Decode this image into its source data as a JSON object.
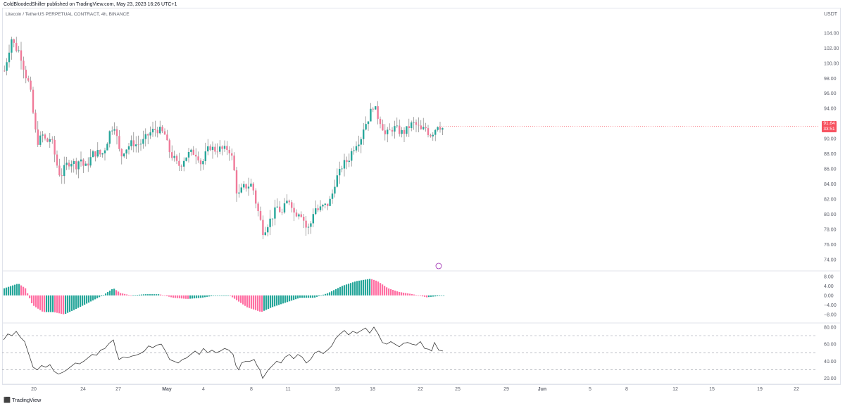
{
  "header": {
    "author": "ColdBloodedShiller published on TradingView.com, May 23, 2023 16:26 UTC+1"
  },
  "symbol_line": "Litecoin / TetherUS PERPETUAL CONTRACT, 4h, BINANCE",
  "footer": {
    "brand": "TradingView"
  },
  "price_tag": {
    "price": "91.64",
    "countdown": "33:51"
  },
  "colors": {
    "up": "#26a69a",
    "down": "#f07a99",
    "hist_up": "#26a69a",
    "hist_down": "#ff6fa3",
    "rsi": "#3c3c3c"
  },
  "chart_data": [
    {
      "type": "candlestick",
      "currency": "USDT",
      "ylim": [
        72.6,
        106.5
      ],
      "y_ticks": [
        "104.00",
        "102.00",
        "100.00",
        "98.00",
        "96.00",
        "94.00",
        "92.00",
        "90.00",
        "88.00",
        "86.00",
        "84.00",
        "82.00",
        "80.00",
        "78.00",
        "76.00",
        "74.00"
      ],
      "x_ticks": [
        "20",
        "24",
        "27",
        "May",
        "4",
        "8",
        "11",
        "15",
        "18",
        "22",
        "25",
        "29",
        "Jun",
        "5",
        "8",
        "12",
        "15",
        "19",
        "22"
      ],
      "close_path": [
        [
          0,
          99.0
        ],
        [
          6,
          101.5
        ],
        [
          10,
          103.3
        ],
        [
          16,
          102.0
        ],
        [
          22,
          101.5
        ],
        [
          30,
          98.5
        ],
        [
          36,
          97.0
        ],
        [
          40,
          94.0
        ],
        [
          44,
          91.0
        ],
        [
          48,
          89.5
        ],
        [
          54,
          90.5
        ],
        [
          60,
          89.5
        ],
        [
          66,
          90.2
        ],
        [
          70,
          88.5
        ],
        [
          76,
          86.0
        ],
        [
          80,
          85.0
        ],
        [
          86,
          86.2
        ],
        [
          90,
          86.8
        ],
        [
          96,
          87.0
        ],
        [
          102,
          86.5
        ],
        [
          108,
          87.5
        ],
        [
          114,
          86.0
        ],
        [
          120,
          87.0
        ],
        [
          126,
          88.0
        ],
        [
          132,
          88.2
        ],
        [
          138,
          87.8
        ],
        [
          144,
          89.0
        ],
        [
          150,
          91.0
        ],
        [
          156,
          92.0
        ],
        [
          160,
          90.0
        ],
        [
          165,
          87.5
        ],
        [
          170,
          88.5
        ],
        [
          176,
          89.0
        ],
        [
          182,
          89.5
        ],
        [
          188,
          89.2
        ],
        [
          196,
          89.5
        ],
        [
          204,
          90.5
        ],
        [
          210,
          91.0
        ],
        [
          216,
          91.3
        ],
        [
          222,
          91.0
        ],
        [
          228,
          90.5
        ],
        [
          232,
          89.0
        ],
        [
          236,
          88.0
        ],
        [
          240,
          87.5
        ],
        [
          246,
          86.5
        ],
        [
          250,
          86.5
        ],
        [
          256,
          87.5
        ],
        [
          262,
          88.0
        ],
        [
          268,
          88.2
        ],
        [
          274,
          88.0
        ],
        [
          280,
          86.5
        ],
        [
          286,
          88.0
        ],
        [
          292,
          89.0
        ],
        [
          298,
          88.5
        ],
        [
          304,
          88.7
        ],
        [
          312,
          88.5
        ],
        [
          318,
          88.8
        ],
        [
          322,
          88.0
        ],
        [
          326,
          86.0
        ],
        [
          330,
          83.0
        ],
        [
          334,
          82.5
        ],
        [
          338,
          83.5
        ],
        [
          346,
          83.8
        ],
        [
          352,
          84.0
        ],
        [
          356,
          82.0
        ],
        [
          360,
          80.5
        ],
        [
          364,
          79.0
        ],
        [
          368,
          77.5
        ],
        [
          372,
          78.5
        ],
        [
          376,
          79.0
        ],
        [
          382,
          80.0
        ],
        [
          388,
          81.0
        ],
        [
          394,
          80.0
        ],
        [
          400,
          81.5
        ],
        [
          406,
          82.0
        ],
        [
          412,
          80.0
        ],
        [
          420,
          80.5
        ],
        [
          426,
          79.0
        ],
        [
          430,
          77.8
        ],
        [
          436,
          79.0
        ],
        [
          440,
          81.0
        ],
        [
          446,
          80.5
        ],
        [
          452,
          81.0
        ],
        [
          458,
          81.2
        ],
        [
          464,
          82.0
        ],
        [
          470,
          84.5
        ],
        [
          476,
          85.5
        ],
        [
          480,
          86.5
        ],
        [
          486,
          87.0
        ],
        [
          490,
          87.5
        ],
        [
          494,
          88.5
        ],
        [
          500,
          89.5
        ],
        [
          506,
          90.0
        ],
        [
          510,
          91.5
        ],
        [
          516,
          92.5
        ],
        [
          520,
          93.5
        ],
        [
          524,
          94.5
        ],
        [
          530,
          93.0
        ],
        [
          536,
          92.0
        ],
        [
          540,
          90.5
        ],
        [
          546,
          90.8
        ],
        [
          552,
          91.5
        ],
        [
          558,
          91.2
        ],
        [
          564,
          90.8
        ],
        [
          570,
          91.0
        ],
        [
          576,
          91.8
        ],
        [
          582,
          92.0
        ],
        [
          588,
          91.5
        ],
        [
          592,
          91.0
        ],
        [
          598,
          91.5
        ],
        [
          604,
          90.5
        ],
        [
          610,
          91.0
        ],
        [
          616,
          92.0
        ],
        [
          620,
          91.5
        ],
        [
          624,
          91.3
        ]
      ]
    },
    {
      "type": "histogram",
      "ylim": [
        -11,
        10
      ],
      "y_ticks": [
        "8.00",
        "4.00",
        "0.00",
        "−4.00",
        "−8.00"
      ]
    },
    {
      "type": "line",
      "ylim": [
        14,
        84
      ],
      "y_ticks": [
        "80.00",
        "60.00",
        "40.00",
        "20.00"
      ],
      "levels": [
        70,
        50,
        30
      ],
      "path": [
        [
          0,
          65
        ],
        [
          6,
          72
        ],
        [
          12,
          70
        ],
        [
          18,
          75
        ],
        [
          24,
          68
        ],
        [
          30,
          63
        ],
        [
          36,
          48
        ],
        [
          42,
          33
        ],
        [
          48,
          30
        ],
        [
          54,
          35
        ],
        [
          60,
          33
        ],
        [
          66,
          36
        ],
        [
          72,
          28
        ],
        [
          78,
          25
        ],
        [
          84,
          27
        ],
        [
          90,
          30
        ],
        [
          96,
          34
        ],
        [
          102,
          38
        ],
        [
          108,
          37
        ],
        [
          114,
          40
        ],
        [
          120,
          44
        ],
        [
          126,
          48
        ],
        [
          132,
          47
        ],
        [
          138,
          53
        ],
        [
          144,
          55
        ],
        [
          150,
          61
        ],
        [
          156,
          65
        ],
        [
          160,
          52
        ],
        [
          164,
          42
        ],
        [
          170,
          45
        ],
        [
          176,
          44
        ],
        [
          182,
          46
        ],
        [
          188,
          47
        ],
        [
          194,
          49
        ],
        [
          200,
          52
        ],
        [
          206,
          58
        ],
        [
          212,
          56
        ],
        [
          218,
          59
        ],
        [
          224,
          60
        ],
        [
          230,
          52
        ],
        [
          236,
          42
        ],
        [
          242,
          40
        ],
        [
          248,
          38
        ],
        [
          254,
          42
        ],
        [
          260,
          44
        ],
        [
          266,
          48
        ],
        [
          272,
          52
        ],
        [
          278,
          48
        ],
        [
          284,
          55
        ],
        [
          290,
          50
        ],
        [
          296,
          53
        ],
        [
          302,
          50
        ],
        [
          308,
          52
        ],
        [
          314,
          55
        ],
        [
          320,
          53
        ],
        [
          326,
          48
        ],
        [
          330,
          35
        ],
        [
          334,
          30
        ],
        [
          338,
          38
        ],
        [
          344,
          40
        ],
        [
          350,
          40
        ],
        [
          356,
          42
        ],
        [
          360,
          35
        ],
        [
          364,
          30
        ],
        [
          368,
          20
        ],
        [
          372,
          25
        ],
        [
          376,
          30
        ],
        [
          382,
          35
        ],
        [
          388,
          40
        ],
        [
          394,
          38
        ],
        [
          400,
          45
        ],
        [
          406,
          48
        ],
        [
          412,
          43
        ],
        [
          418,
          48
        ],
        [
          424,
          45
        ],
        [
          430,
          38
        ],
        [
          436,
          42
        ],
        [
          442,
          50
        ],
        [
          448,
          52
        ],
        [
          454,
          49
        ],
        [
          460,
          53
        ],
        [
          466,
          58
        ],
        [
          472,
          67
        ],
        [
          478,
          72
        ],
        [
          484,
          76
        ],
        [
          490,
          71
        ],
        [
          496,
          75
        ],
        [
          502,
          73
        ],
        [
          508,
          76
        ],
        [
          514,
          79
        ],
        [
          520,
          73
        ],
        [
          526,
          80
        ],
        [
          532,
          72
        ],
        [
          538,
          62
        ],
        [
          544,
          60
        ],
        [
          550,
          63
        ],
        [
          556,
          60
        ],
        [
          562,
          57
        ],
        [
          568,
          61
        ],
        [
          574,
          62
        ],
        [
          580,
          60
        ],
        [
          586,
          59
        ],
        [
          592,
          63
        ],
        [
          598,
          55
        ],
        [
          604,
          54
        ],
        [
          608,
          52
        ],
        [
          612,
          62
        ],
        [
          618,
          53
        ],
        [
          624,
          52
        ]
      ]
    }
  ]
}
